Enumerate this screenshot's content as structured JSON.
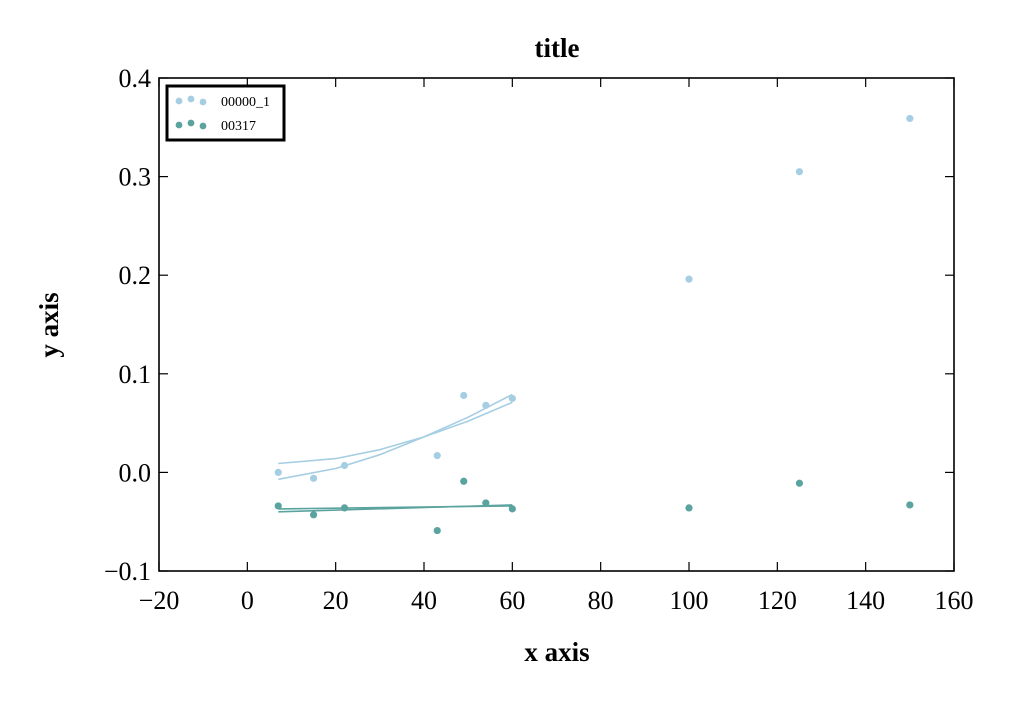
{
  "chart_data": {
    "type": "scatter",
    "title": "title",
    "xlabel": "x axis",
    "ylabel": "y axis",
    "xlim": [
      -20,
      160
    ],
    "ylim": [
      -0.1,
      0.4
    ],
    "xticks": [
      -20,
      0,
      20,
      40,
      60,
      80,
      100,
      120,
      140,
      160
    ],
    "xtick_labels": [
      "−20",
      "0",
      "20",
      "40",
      "60",
      "80",
      "100",
      "120",
      "140",
      "160"
    ],
    "yticks": [
      -0.1,
      0.0,
      0.1,
      0.2,
      0.3,
      0.4
    ],
    "ytick_labels": [
      "−0.1",
      "0.0",
      "0.1",
      "0.2",
      "0.3",
      "0.4"
    ],
    "grid": false,
    "legend_position": "top-left",
    "series": [
      {
        "name": "00000_1",
        "color": "#a6cee3",
        "points": [
          {
            "x": 7,
            "y": 0.0
          },
          {
            "x": 15,
            "y": -0.006
          },
          {
            "x": 22,
            "y": 0.007
          },
          {
            "x": 43,
            "y": 0.017
          },
          {
            "x": 49,
            "y": 0.078
          },
          {
            "x": 54,
            "y": 0.068
          },
          {
            "x": 60,
            "y": 0.075
          },
          {
            "x": 100,
            "y": 0.196
          },
          {
            "x": 125,
            "y": 0.305
          },
          {
            "x": 150,
            "y": 0.359
          }
        ],
        "fit_lines": [
          [
            [
              7,
              0.009
            ],
            [
              20,
              0.014
            ],
            [
              30,
              0.023
            ],
            [
              40,
              0.036
            ],
            [
              50,
              0.052
            ],
            [
              60,
              0.071
            ]
          ],
          [
            [
              7,
              -0.007
            ],
            [
              20,
              0.004
            ],
            [
              30,
              0.018
            ],
            [
              40,
              0.036
            ],
            [
              50,
              0.056
            ],
            [
              60,
              0.079
            ]
          ]
        ]
      },
      {
        "name": "00317",
        "color": "#5aa39e",
        "points": [
          {
            "x": 7,
            "y": -0.034
          },
          {
            "x": 15,
            "y": -0.043
          },
          {
            "x": 22,
            "y": -0.036
          },
          {
            "x": 43,
            "y": -0.059
          },
          {
            "x": 49,
            "y": -0.009
          },
          {
            "x": 54,
            "y": -0.031
          },
          {
            "x": 60,
            "y": -0.037
          },
          {
            "x": 100,
            "y": -0.036
          },
          {
            "x": 125,
            "y": -0.011
          },
          {
            "x": 150,
            "y": -0.033
          }
        ],
        "fit_lines": [
          [
            [
              7,
              -0.037
            ],
            [
              60,
              -0.034
            ]
          ],
          [
            [
              7,
              -0.04
            ],
            [
              60,
              -0.033
            ]
          ]
        ]
      }
    ]
  }
}
